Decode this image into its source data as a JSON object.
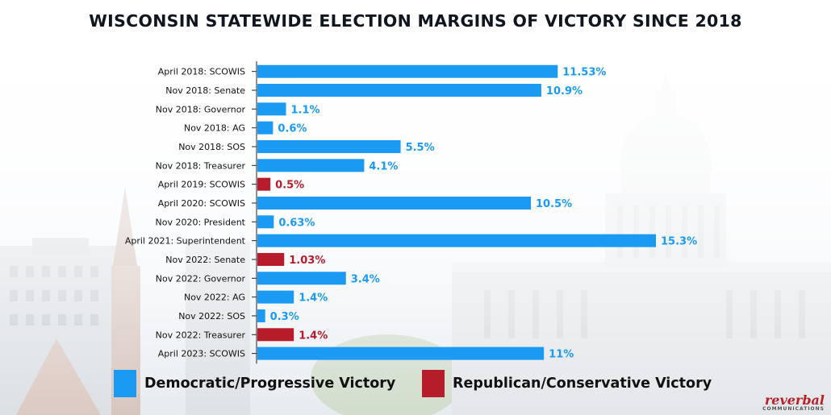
{
  "title": "WISCONSIN STATEWIDE ELECTION MARGINS OF VICTORY SINCE 2018",
  "colors": {
    "democratic": "#1a9af2",
    "republican": "#b71c2b"
  },
  "legend": {
    "democratic_label": "Democratic/Progressive Victory",
    "republican_label": "Republican/Conservative Victory"
  },
  "logo": {
    "name": "reverbal",
    "sub": "COMMUNICATIONS"
  },
  "chart_data": {
    "type": "bar",
    "orientation": "horizontal",
    "title": "WISCONSIN STATEWIDE ELECTION MARGINS OF VICTORY SINCE 2018",
    "xlabel": "",
    "ylabel": "",
    "xlim": [
      0,
      15.3
    ],
    "grid": false,
    "legend_position": "bottom",
    "categories": [
      "April 2018: SCOWIS",
      "Nov 2018: Senate",
      "Nov 2018: Governor",
      "Nov 2018: AG",
      "Nov 2018: SOS",
      "Nov 2018: Treasurer",
      "April 2019: SCOWIS",
      "April 2020: SCOWIS",
      "Nov 2020: President",
      "April 2021: Superintendent",
      "Nov 2022: Senate",
      "Nov 2022: Governor",
      "Nov 2022: AG",
      "Nov 2022: SOS",
      "Nov 2022: Treasurer",
      "April 2023: SCOWIS"
    ],
    "values": [
      11.53,
      10.9,
      1.1,
      0.6,
      5.5,
      4.1,
      0.5,
      10.5,
      0.63,
      15.3,
      1.03,
      3.4,
      1.4,
      0.3,
      1.4,
      11
    ],
    "labels": [
      "11.53%",
      "10.9%",
      "1.1%",
      "0.6%",
      "5.5%",
      "4.1%",
      "0.5%",
      "10.5%",
      "0.63%",
      "15.3%",
      "1.03%",
      "3.4%",
      "1.4%",
      "0.3%",
      "1.4%",
      "11%"
    ],
    "winner": [
      "dem",
      "dem",
      "dem",
      "dem",
      "dem",
      "dem",
      "rep",
      "dem",
      "dem",
      "dem",
      "rep",
      "dem",
      "dem",
      "dem",
      "rep",
      "dem"
    ]
  }
}
